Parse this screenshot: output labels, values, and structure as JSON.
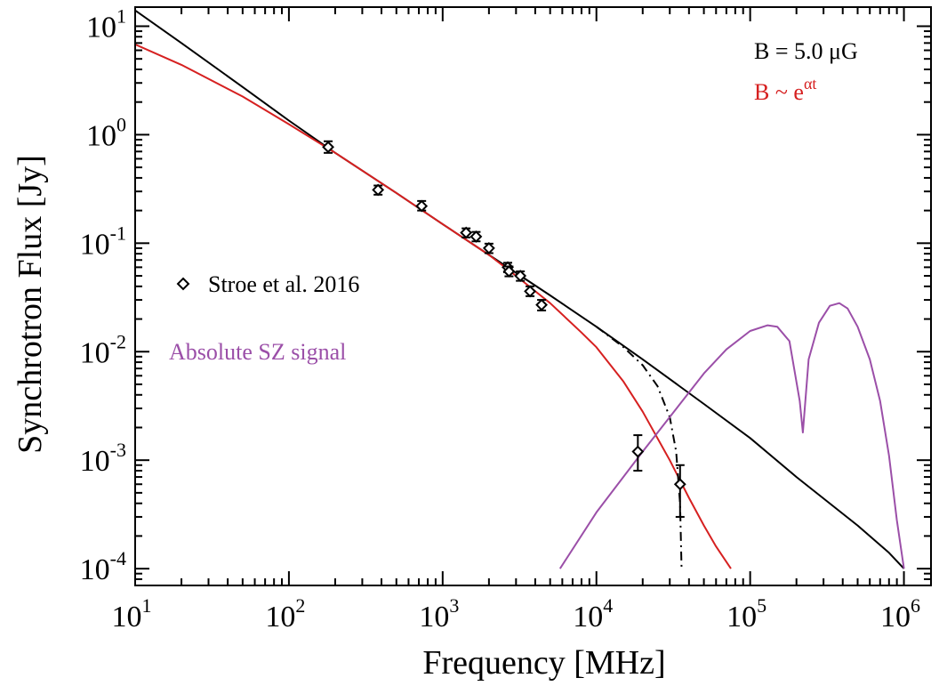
{
  "chart_data": {
    "type": "scatter",
    "xlabel": "Frequency [MHz]",
    "ylabel": "Synchrotron Flux [Jy]",
    "xscale": "log",
    "yscale": "log",
    "xlim": [
      10,
      1500000
    ],
    "ylim": [
      7e-05,
      15
    ],
    "grid": false,
    "x_ticks": [
      {
        "value": 10,
        "mantissa": "10",
        "exponent": "1"
      },
      {
        "value": 100,
        "mantissa": "10",
        "exponent": "2"
      },
      {
        "value": 1000,
        "mantissa": "10",
        "exponent": "3"
      },
      {
        "value": 10000,
        "mantissa": "10",
        "exponent": "4"
      },
      {
        "value": 100000,
        "mantissa": "10",
        "exponent": "5"
      },
      {
        "value": 1000000,
        "mantissa": "10",
        "exponent": "6"
      }
    ],
    "y_ticks": [
      {
        "value": 10,
        "mantissa": "10",
        "exponent": "1"
      },
      {
        "value": 1,
        "mantissa": "10",
        "exponent": "0"
      },
      {
        "value": 0.1,
        "mantissa": "10",
        "exponent": "-1"
      },
      {
        "value": 0.01,
        "mantissa": "10",
        "exponent": "-2"
      },
      {
        "value": 0.001,
        "mantissa": "10",
        "exponent": "-3"
      },
      {
        "value": 0.0001,
        "mantissa": "10",
        "exponent": "-4"
      }
    ],
    "annotations": {
      "b_field_label": "B = 5.0 μG",
      "b_growth_label": "B ~ e",
      "b_growth_exponent": "αt",
      "b_growth_color": "#d62020",
      "sz_label": "Absolute SZ signal",
      "sz_color": "#9b4fa8"
    },
    "legend": {
      "placement": "left",
      "entries": [
        {
          "marker": "diamond",
          "label": "Stroe et al. 2016"
        }
      ]
    },
    "series": [
      {
        "name": "Stroe et al. 2016",
        "kind": "points",
        "color": "#000000",
        "points": [
          {
            "x": 180,
            "y": 0.77,
            "ylo": 0.68,
            "yhi": 0.87
          },
          {
            "x": 380,
            "y": 0.31,
            "ylo": 0.28,
            "yhi": 0.34
          },
          {
            "x": 730,
            "y": 0.22,
            "ylo": 0.2,
            "yhi": 0.245
          },
          {
            "x": 1420,
            "y": 0.125,
            "ylo": 0.113,
            "yhi": 0.137
          },
          {
            "x": 1650,
            "y": 0.115,
            "ylo": 0.104,
            "yhi": 0.127
          },
          {
            "x": 2000,
            "y": 0.09,
            "ylo": 0.081,
            "yhi": 0.099
          },
          {
            "x": 2650,
            "y": 0.06,
            "ylo": 0.054,
            "yhi": 0.066
          },
          {
            "x": 2700,
            "y": 0.055,
            "ylo": 0.0495,
            "yhi": 0.061
          },
          {
            "x": 3200,
            "y": 0.05,
            "ylo": 0.045,
            "yhi": 0.055
          },
          {
            "x": 3700,
            "y": 0.036,
            "ylo": 0.0325,
            "yhi": 0.04
          },
          {
            "x": 4400,
            "y": 0.027,
            "ylo": 0.024,
            "yhi": 0.03
          },
          {
            "x": 18600,
            "y": 0.0012,
            "ylo": 0.0008,
            "yhi": 0.0017
          },
          {
            "x": 35000,
            "y": 0.0006,
            "ylo": 0.0003,
            "yhi": 0.0009
          }
        ]
      },
      {
        "name": "B = 5.0 μG",
        "kind": "line",
        "style": "solid",
        "color": "#000000",
        "points": [
          [
            10,
            14
          ],
          [
            20,
            7.0
          ],
          [
            50,
            2.75
          ],
          [
            100,
            1.35
          ],
          [
            200,
            0.68
          ],
          [
            500,
            0.29
          ],
          [
            1000,
            0.15
          ],
          [
            2000,
            0.078
          ],
          [
            5000,
            0.033
          ],
          [
            10000,
            0.017
          ],
          [
            20000,
            0.0085
          ],
          [
            50000,
            0.0033
          ],
          [
            100000,
            0.0016
          ],
          [
            200000,
            0.0007
          ],
          [
            500000,
            0.00025
          ],
          [
            800000,
            0.00014
          ],
          [
            1000000,
            0.0001
          ]
        ]
      },
      {
        "name": "B ~ e^αt",
        "kind": "line",
        "style": "solid",
        "color": "#d62020",
        "points": [
          [
            10,
            6.8
          ],
          [
            20,
            4.4
          ],
          [
            50,
            2.25
          ],
          [
            100,
            1.25
          ],
          [
            200,
            0.68
          ],
          [
            500,
            0.29
          ],
          [
            1000,
            0.15
          ],
          [
            2000,
            0.078
          ],
          [
            3000,
            0.05
          ],
          [
            5000,
            0.028
          ],
          [
            8000,
            0.015
          ],
          [
            10000,
            0.011
          ],
          [
            15000,
            0.0053
          ],
          [
            20000,
            0.0028
          ],
          [
            30000,
            0.001
          ],
          [
            40000,
            0.00045
          ],
          [
            50000,
            0.00025
          ],
          [
            60000,
            0.00016
          ],
          [
            75000,
            0.0001
          ]
        ]
      },
      {
        "name": "",
        "kind": "line",
        "style": "dashdot",
        "color": "#000000",
        "points": [
          [
            10000,
            0.017
          ],
          [
            15000,
            0.011
          ],
          [
            20000,
            0.0075
          ],
          [
            25000,
            0.0048
          ],
          [
            30000,
            0.0025
          ],
          [
            33000,
            0.0012
          ],
          [
            35000,
            0.0004
          ],
          [
            35800,
            0.0001
          ]
        ]
      },
      {
        "name": "Absolute SZ signal",
        "kind": "line",
        "style": "solid",
        "color": "#9b4fa8",
        "points": [
          [
            5800,
            0.0001
          ],
          [
            10000,
            0.00033
          ],
          [
            20000,
            0.0012
          ],
          [
            30000,
            0.0025
          ],
          [
            50000,
            0.0063
          ],
          [
            70000,
            0.0105
          ],
          [
            100000,
            0.0155
          ],
          [
            130000,
            0.0175
          ],
          [
            150000,
            0.017
          ],
          [
            180000,
            0.0125
          ],
          [
            210000,
            0.0035
          ],
          [
            220000,
            0.0018
          ],
          [
            240000,
            0.0085
          ],
          [
            280000,
            0.0185
          ],
          [
            330000,
            0.0265
          ],
          [
            380000,
            0.028
          ],
          [
            430000,
            0.025
          ],
          [
            500000,
            0.017
          ],
          [
            600000,
            0.0085
          ],
          [
            700000,
            0.0035
          ],
          [
            800000,
            0.0011
          ],
          [
            900000,
            0.00028
          ],
          [
            1000000,
            0.0001
          ]
        ]
      }
    ]
  }
}
